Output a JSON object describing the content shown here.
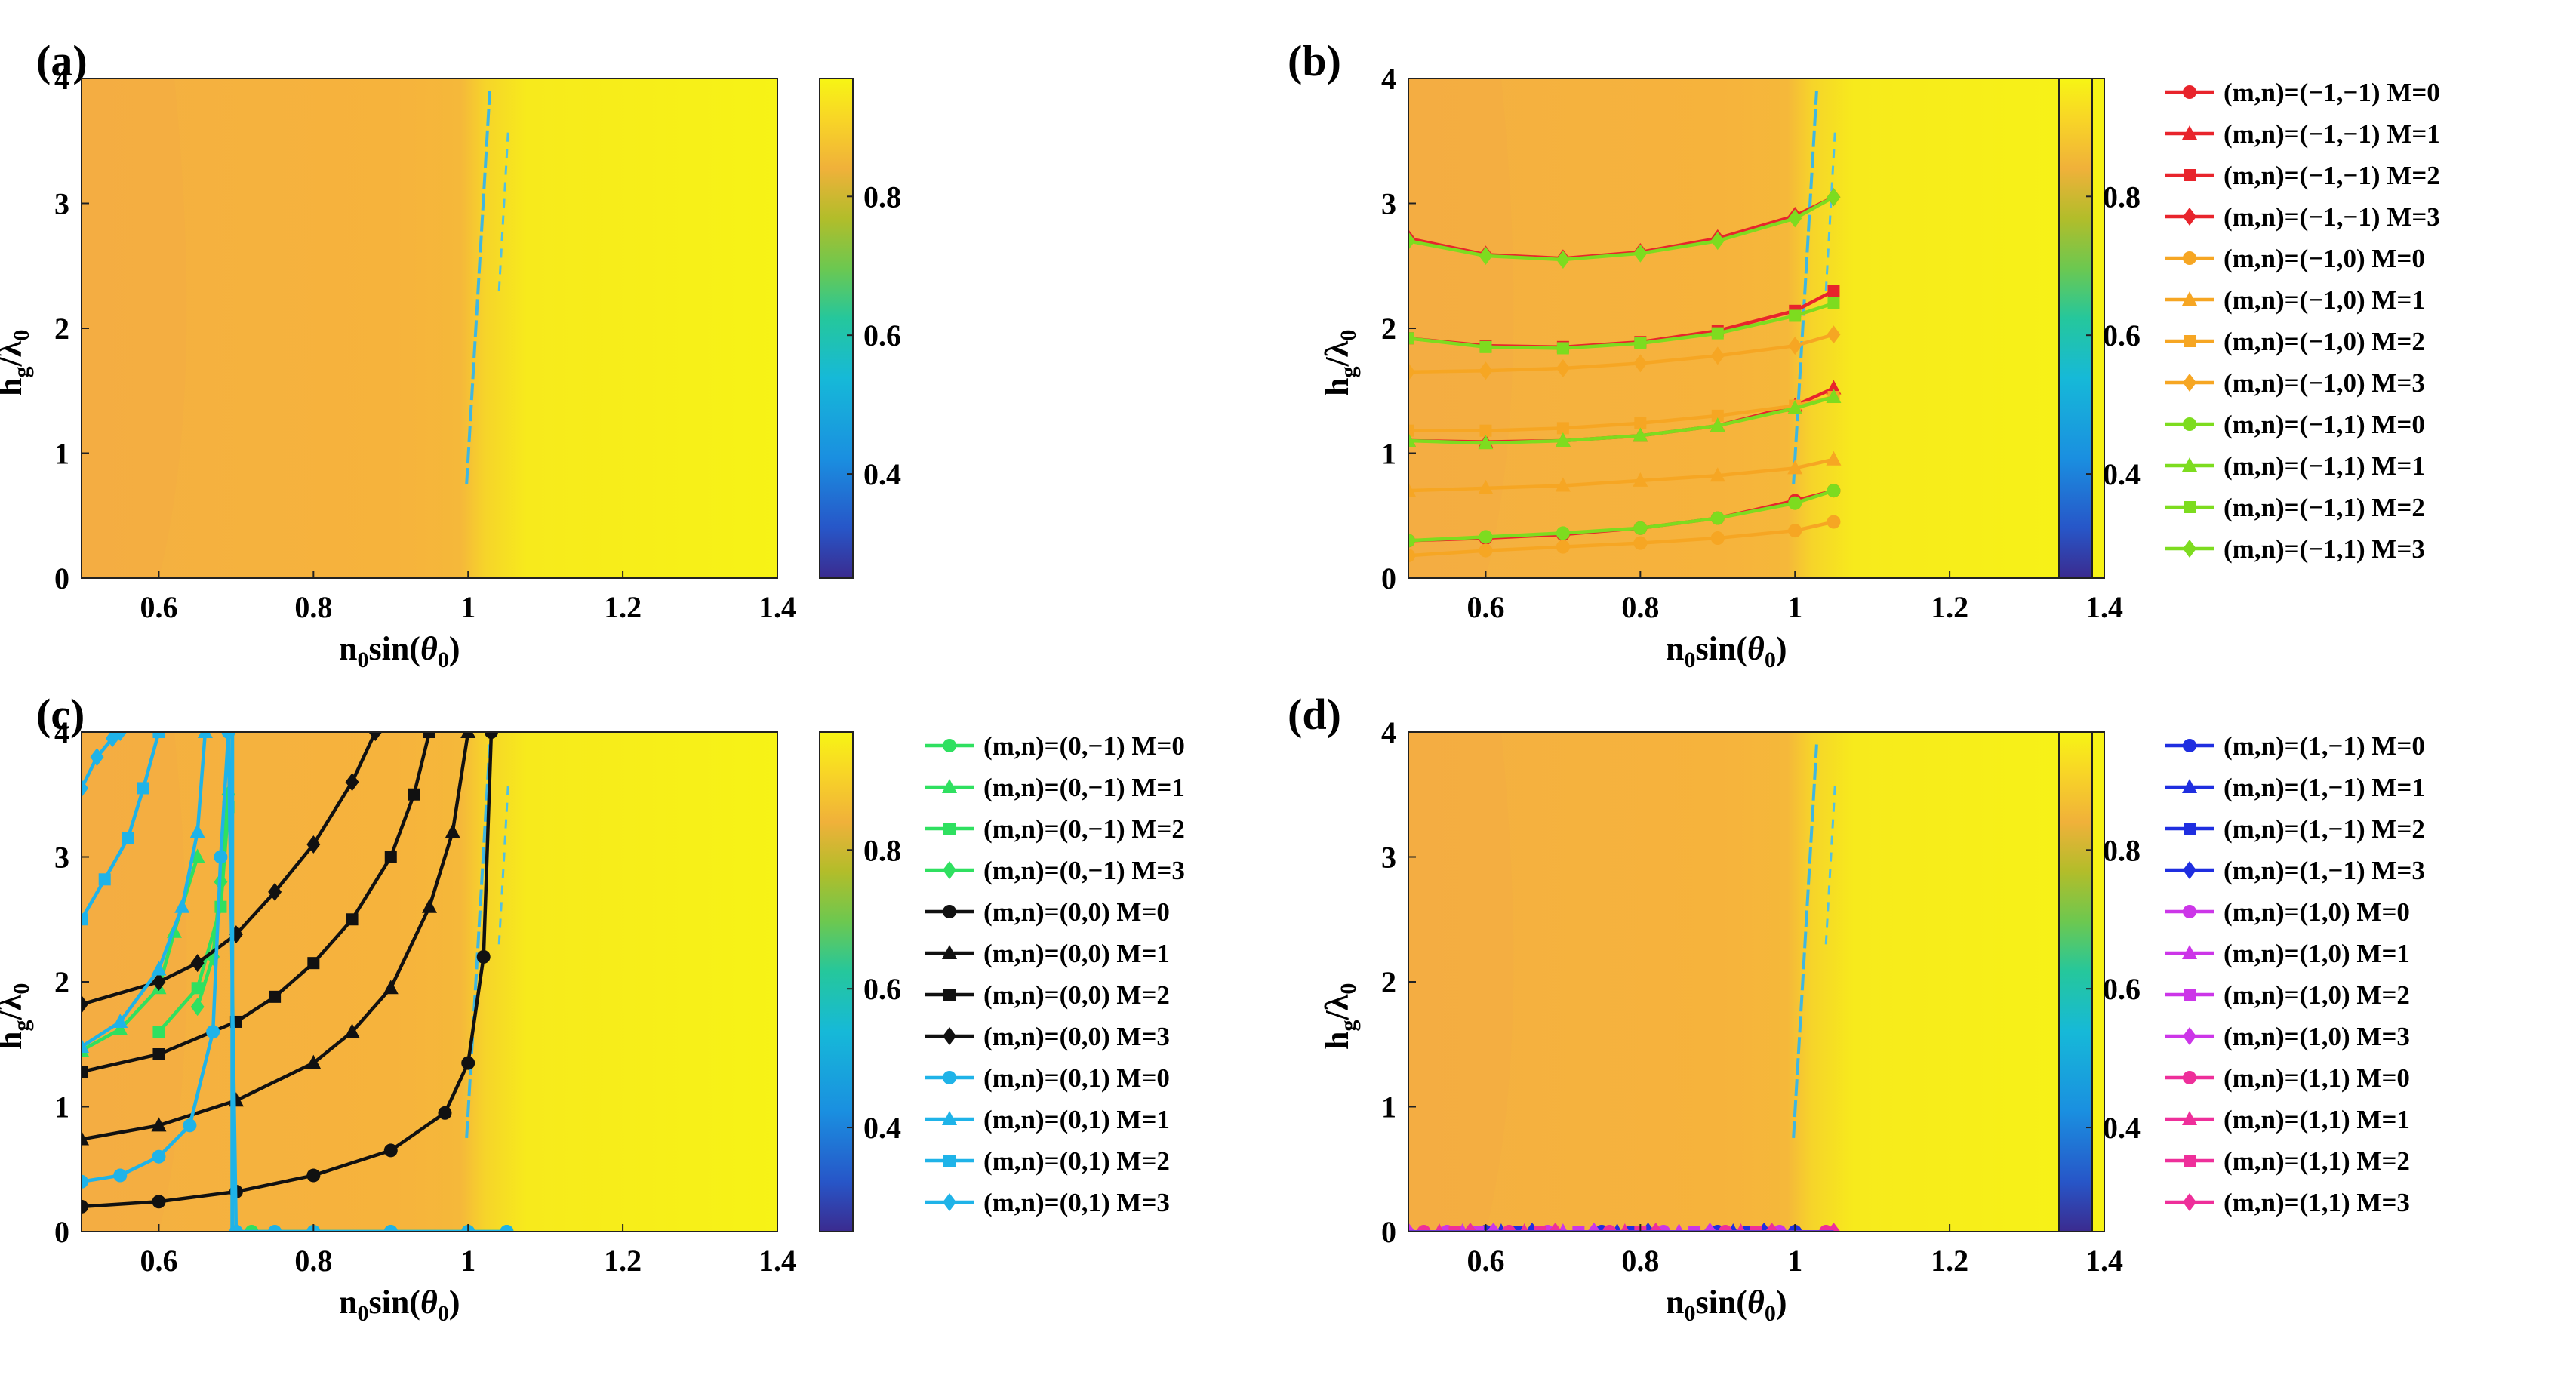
{
  "chart_data": [
    {
      "panel": "(a)",
      "type": "heatmap",
      "xlabel": {
        "base": "n",
        "sub": "0",
        "rest": "sin(",
        "theta": "θ",
        "theta_sub": "0",
        "close": ")"
      },
      "ylabel": {
        "base": "h",
        "sub": "g",
        "slash": "/",
        "lambda": "λ",
        "lambda_sub": "0"
      },
      "xlim": [
        0.5,
        1.4
      ],
      "ylim": [
        0,
        4
      ],
      "xticks": [
        0.6,
        0.8,
        1,
        1.2,
        1.4
      ],
      "xtick_labels": [
        "0.6",
        "0.8",
        "1",
        "1.2",
        "1.4"
      ],
      "yticks": [
        0,
        1,
        2,
        3,
        4
      ],
      "ytick_labels": [
        "0",
        "1",
        "2",
        "3",
        "4"
      ],
      "colorbar": {
        "range": [
          0.25,
          0.97
        ],
        "ticks": [
          0.4,
          0.6,
          0.8
        ],
        "tick_labels": [
          "0.4",
          "0.6",
          "0.8"
        ]
      },
      "colors": {
        "orange": "#f6b23c",
        "yellow": "#f6f016",
        "stripe": "#3fb6e0"
      },
      "series": []
    },
    {
      "panel": "(b)",
      "type": "heatmap",
      "xlabel": {
        "base": "n",
        "sub": "0",
        "rest": "sin(",
        "theta": "θ",
        "theta_sub": "0",
        "close": ")"
      },
      "ylabel": {
        "base": "h",
        "sub": "g",
        "slash": "/",
        "lambda": "λ",
        "lambda_sub": "0"
      },
      "xlim": [
        0.5,
        1.4
      ],
      "ylim": [
        0,
        4
      ],
      "xticks": [
        0.6,
        0.8,
        1,
        1.2,
        1.4
      ],
      "xtick_labels": [
        "0.6",
        "0.8",
        "1",
        "1.2",
        "1.4"
      ],
      "yticks": [
        0,
        1,
        2,
        3,
        4
      ],
      "ytick_labels": [
        "0",
        "1",
        "2",
        "3",
        "4"
      ],
      "colorbar": {
        "range": [
          0.25,
          0.97
        ],
        "ticks": [
          0.4,
          0.6,
          0.8
        ],
        "tick_labels": [
          "0.4",
          "0.6",
          "0.8"
        ]
      },
      "series": [
        {
          "name": "(m,n)=(−1,−1) M=0",
          "color": "#e8242c",
          "marker": "circle",
          "x": [
            0.5,
            0.6,
            0.7,
            0.8,
            0.9,
            1.0,
            1.05
          ],
          "y": [
            0.3,
            0.32,
            0.35,
            0.4,
            0.48,
            0.62,
            0.7
          ]
        },
        {
          "name": "(m,n)=(−1,−1) M=1",
          "color": "#e8242c",
          "marker": "triangle",
          "x": [
            0.5,
            0.6,
            0.7,
            0.8,
            0.9,
            1.0,
            1.05
          ],
          "y": [
            1.1,
            1.09,
            1.1,
            1.14,
            1.22,
            1.38,
            1.52
          ]
        },
        {
          "name": "(m,n)=(−1,−1) M=2",
          "color": "#e8242c",
          "marker": "square",
          "x": [
            0.5,
            0.6,
            0.7,
            0.8,
            0.9,
            1.0,
            1.05
          ],
          "y": [
            1.92,
            1.86,
            1.85,
            1.89,
            1.98,
            2.14,
            2.3
          ]
        },
        {
          "name": "(m,n)=(−1,−1) M=3",
          "color": "#e8242c",
          "marker": "diamond",
          "x": [
            0.5,
            0.6,
            0.7,
            0.8,
            0.9,
            1.0,
            1.05
          ],
          "y": [
            2.72,
            2.59,
            2.56,
            2.61,
            2.72,
            2.9,
            3.05
          ]
        },
        {
          "name": "(m,n)=(−1,0) M=0",
          "color": "#f6a623",
          "marker": "circle",
          "x": [
            0.5,
            0.6,
            0.7,
            0.8,
            0.9,
            1.0,
            1.05
          ],
          "y": [
            0.18,
            0.22,
            0.25,
            0.28,
            0.32,
            0.38,
            0.45
          ]
        },
        {
          "name": "(m,n)=(−1,0) M=1",
          "color": "#f6a623",
          "marker": "triangle",
          "x": [
            0.5,
            0.6,
            0.7,
            0.8,
            0.9,
            1.0,
            1.05
          ],
          "y": [
            0.7,
            0.72,
            0.74,
            0.78,
            0.82,
            0.88,
            0.95
          ]
        },
        {
          "name": "(m,n)=(−1,0) M=2",
          "color": "#f6a623",
          "marker": "square",
          "x": [
            0.5,
            0.6,
            0.7,
            0.8,
            0.9,
            1.0,
            1.05
          ],
          "y": [
            1.18,
            1.18,
            1.2,
            1.24,
            1.3,
            1.38,
            1.45
          ]
        },
        {
          "name": "(m,n)=(−1,0) M=3",
          "color": "#f6a623",
          "marker": "diamond",
          "x": [
            0.5,
            0.6,
            0.7,
            0.8,
            0.9,
            1.0,
            1.05
          ],
          "y": [
            1.65,
            1.66,
            1.68,
            1.72,
            1.78,
            1.86,
            1.95
          ]
        },
        {
          "name": "(m,n)=(−1,1) M=0",
          "color": "#7ddc1f",
          "marker": "circle",
          "x": [
            0.5,
            0.6,
            0.7,
            0.8,
            0.9,
            1.0,
            1.05
          ],
          "y": [
            0.3,
            0.33,
            0.36,
            0.4,
            0.48,
            0.6,
            0.7
          ]
        },
        {
          "name": "(m,n)=(−1,1) M=1",
          "color": "#7ddc1f",
          "marker": "triangle",
          "x": [
            0.5,
            0.6,
            0.7,
            0.8,
            0.9,
            1.0,
            1.05
          ],
          "y": [
            1.1,
            1.08,
            1.1,
            1.14,
            1.22,
            1.36,
            1.45
          ]
        },
        {
          "name": "(m,n)=(−1,1) M=2",
          "color": "#7ddc1f",
          "marker": "square",
          "x": [
            0.5,
            0.6,
            0.7,
            0.8,
            0.9,
            1.0,
            1.05
          ],
          "y": [
            1.92,
            1.85,
            1.84,
            1.88,
            1.96,
            2.1,
            2.2
          ]
        },
        {
          "name": "(m,n)=(−1,1) M=3",
          "color": "#7ddc1f",
          "marker": "diamond",
          "x": [
            0.5,
            0.6,
            0.7,
            0.8,
            0.9,
            1.0,
            1.05
          ],
          "y": [
            2.7,
            2.58,
            2.55,
            2.6,
            2.7,
            2.88,
            3.05
          ]
        }
      ]
    },
    {
      "panel": "(c)",
      "type": "heatmap",
      "xlabel": {
        "base": "n",
        "sub": "0",
        "rest": "sin(",
        "theta": "θ",
        "theta_sub": "0",
        "close": ")"
      },
      "ylabel": {
        "base": "h",
        "sub": "g",
        "slash": "/",
        "lambda": "λ",
        "lambda_sub": "0"
      },
      "xlim": [
        0.5,
        1.4
      ],
      "ylim": [
        0,
        4
      ],
      "xticks": [
        0.6,
        0.8,
        1,
        1.2,
        1.4
      ],
      "xtick_labels": [
        "0.6",
        "0.8",
        "1",
        "1.2",
        "1.4"
      ],
      "yticks": [
        0,
        1,
        2,
        3,
        4
      ],
      "ytick_labels": [
        "0",
        "1",
        "2",
        "3",
        "4"
      ],
      "colorbar": {
        "range": [
          0.25,
          0.97
        ],
        "ticks": [
          0.4,
          0.6,
          0.8
        ],
        "tick_labels": [
          "0.4",
          "0.6",
          "0.8"
        ]
      },
      "series": [
        {
          "name": "(m,n)=(0,−1) M=0",
          "color": "#2fe060",
          "marker": "circle",
          "x": [
            0.72,
            0.8,
            0.9,
            1.0,
            1.05
          ],
          "y": [
            0,
            0,
            0,
            0,
            0
          ]
        },
        {
          "name": "(m,n)=(0,−1) M=1",
          "color": "#2fe060",
          "marker": "triangle",
          "x": [
            0.5,
            0.55,
            0.6,
            0.62,
            0.65
          ],
          "y": [
            1.45,
            1.62,
            1.95,
            2.4,
            3.0
          ]
        },
        {
          "name": "(m,n)=(0,−1) M=2",
          "color": "#2fe060",
          "marker": "square",
          "x": [
            0.6,
            0.65,
            0.68,
            0.69
          ],
          "y": [
            1.6,
            1.95,
            2.6,
            3.4
          ]
        },
        {
          "name": "(m,n)=(0,−1) M=3",
          "color": "#2fe060",
          "marker": "diamond",
          "x": [
            0.65,
            0.67,
            0.68,
            0.69
          ],
          "y": [
            1.8,
            2.2,
            2.8,
            3.5
          ]
        },
        {
          "name": "(m,n)=(0,0) M=0",
          "color": "#111111",
          "marker": "circle",
          "x": [
            0.5,
            0.6,
            0.7,
            0.8,
            0.9,
            0.97,
            1.0,
            1.02,
            1.03
          ],
          "y": [
            0.2,
            0.24,
            0.32,
            0.45,
            0.65,
            0.95,
            1.35,
            2.2,
            4.0
          ]
        },
        {
          "name": "(m,n)=(0,0) M=1",
          "color": "#111111",
          "marker": "triangle",
          "x": [
            0.5,
            0.6,
            0.7,
            0.8,
            0.85,
            0.9,
            0.95,
            0.98,
            1.0
          ],
          "y": [
            0.74,
            0.85,
            1.05,
            1.35,
            1.6,
            1.95,
            2.6,
            3.2,
            4.0
          ]
        },
        {
          "name": "(m,n)=(0,0) M=2",
          "color": "#111111",
          "marker": "square",
          "x": [
            0.5,
            0.6,
            0.7,
            0.75,
            0.8,
            0.85,
            0.9,
            0.93,
            0.95
          ],
          "y": [
            1.28,
            1.42,
            1.68,
            1.88,
            2.15,
            2.5,
            3.0,
            3.5,
            4.0
          ]
        },
        {
          "name": "(m,n)=(0,0) M=3",
          "color": "#111111",
          "marker": "diamond",
          "x": [
            0.5,
            0.6,
            0.65,
            0.7,
            0.75,
            0.8,
            0.85,
            0.88
          ],
          "y": [
            1.82,
            2.0,
            2.15,
            2.38,
            2.72,
            3.1,
            3.6,
            4.0
          ]
        },
        {
          "name": "(m,n)=(0,1) M=0",
          "color": "#1fb3e8",
          "marker": "circle",
          "x": [
            0.5,
            0.55,
            0.6,
            0.64,
            0.67,
            0.68,
            0.69,
            0.7,
            0.75,
            0.8,
            0.9,
            1.0,
            1.05
          ],
          "y": [
            0.4,
            0.45,
            0.6,
            0.85,
            1.6,
            3.0,
            4.0,
            0,
            0,
            0,
            0,
            0,
            0
          ]
        },
        {
          "name": "(m,n)=(0,1) M=1",
          "color": "#1fb3e8",
          "marker": "triangle",
          "x": [
            0.5,
            0.55,
            0.6,
            0.63,
            0.65,
            0.66
          ],
          "y": [
            1.48,
            1.68,
            2.1,
            2.6,
            3.2,
            4.0
          ]
        },
        {
          "name": "(m,n)=(0,1) M=2",
          "color": "#1fb3e8",
          "marker": "square",
          "x": [
            0.5,
            0.53,
            0.56,
            0.58,
            0.6
          ],
          "y": [
            2.5,
            2.82,
            3.15,
            3.55,
            4.0
          ]
        },
        {
          "name": "(m,n)=(0,1) M=3",
          "color": "#1fb3e8",
          "marker": "diamond",
          "x": [
            0.5,
            0.52,
            0.54,
            0.55
          ],
          "y": [
            3.55,
            3.8,
            3.95,
            4.0
          ]
        }
      ]
    },
    {
      "panel": "(d)",
      "type": "heatmap",
      "xlabel": {
        "base": "n",
        "sub": "0",
        "rest": "sin(",
        "theta": "θ",
        "theta_sub": "0",
        "close": ")"
      },
      "ylabel": {
        "base": "h",
        "sub": "g",
        "slash": "/",
        "lambda": "λ",
        "lambda_sub": "0"
      },
      "xlim": [
        0.5,
        1.4
      ],
      "ylim": [
        0,
        4
      ],
      "xticks": [
        0.6,
        0.8,
        1,
        1.2,
        1.4
      ],
      "xtick_labels": [
        "0.6",
        "0.8",
        "1",
        "1.2",
        "1.4"
      ],
      "yticks": [
        0,
        1,
        2,
        3,
        4
      ],
      "ytick_labels": [
        "0",
        "1",
        "2",
        "3",
        "4"
      ],
      "colorbar": {
        "range": [
          0.25,
          0.97
        ],
        "ticks": [
          0.4,
          0.6,
          0.8
        ],
        "tick_labels": [
          "0.4",
          "0.6",
          "0.8"
        ]
      },
      "series": [
        {
          "name": "(m,n)=(1,−1) M=0",
          "color": "#1f2ee0",
          "marker": "circle",
          "x": [
            0.6,
            0.75,
            0.9,
            1.0
          ],
          "y": [
            0,
            0,
            0,
            0
          ]
        },
        {
          "name": "(m,n)=(1,−1) M=1",
          "color": "#1f2ee0",
          "marker": "triangle",
          "x": [
            0.62,
            0.77,
            0.92
          ],
          "y": [
            0,
            0,
            0
          ]
        },
        {
          "name": "(m,n)=(1,−1) M=2",
          "color": "#1f2ee0",
          "marker": "square",
          "x": [
            0.64,
            0.79,
            0.94
          ],
          "y": [
            0,
            0,
            0
          ]
        },
        {
          "name": "(m,n)=(1,−1) M=3",
          "color": "#1f2ee0",
          "marker": "diamond",
          "x": [
            0.66,
            0.81,
            0.96
          ],
          "y": [
            0,
            0,
            0
          ]
        },
        {
          "name": "(m,n)=(1,0) M=0",
          "color": "#cc36e8",
          "marker": "circle",
          "x": [
            0.55,
            0.68,
            0.83,
            0.98
          ],
          "y": [
            0,
            0,
            0,
            0
          ]
        },
        {
          "name": "(m,n)=(1,0) M=1",
          "color": "#cc36e8",
          "marker": "triangle",
          "x": [
            0.57,
            0.7,
            0.85
          ],
          "y": [
            0,
            0,
            0
          ]
        },
        {
          "name": "(m,n)=(1,0) M=2",
          "color": "#cc36e8",
          "marker": "square",
          "x": [
            0.59,
            0.72,
            0.87
          ],
          "y": [
            0,
            0,
            0
          ]
        },
        {
          "name": "(m,n)=(1,0) M=3",
          "color": "#cc36e8",
          "marker": "diamond",
          "x": [
            0.5,
            0.61,
            0.74,
            0.89
          ],
          "y": [
            0,
            0,
            0,
            0
          ]
        },
        {
          "name": "(m,n)=(1,1) M=0",
          "color": "#ee2f9a",
          "marker": "circle",
          "x": [
            0.52,
            0.63,
            0.76,
            0.91,
            1.04
          ],
          "y": [
            0,
            0,
            0,
            0,
            0
          ]
        },
        {
          "name": "(m,n)=(1,1) M=1",
          "color": "#ee2f9a",
          "marker": "triangle",
          "x": [
            0.54,
            0.65,
            0.78,
            0.93
          ],
          "y": [
            0,
            0,
            0,
            0
          ]
        },
        {
          "name": "(m,n)=(1,1) M=2",
          "color": "#ee2f9a",
          "marker": "square",
          "x": [
            0.56,
            0.67,
            0.8,
            0.95
          ],
          "y": [
            0,
            0,
            0,
            0
          ]
        },
        {
          "name": "(m,n)=(1,1) M=3",
          "color": "#ee2f9a",
          "marker": "diamond",
          "x": [
            0.58,
            0.69,
            0.82,
            0.97,
            1.05
          ],
          "y": [
            0,
            0,
            0,
            0,
            0
          ]
        }
      ]
    }
  ]
}
